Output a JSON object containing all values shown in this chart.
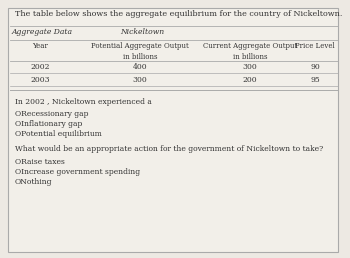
{
  "title": "The table below shows the aggregate equilibrium for the country of Nickeltown.",
  "table_header1": "Aggregate Data",
  "table_header2": "Nickeltown",
  "col_year": "Year",
  "col_potential": "Potential Aggregate Output",
  "col_current": "Current Aggregate Output",
  "col_price": "Price Level",
  "sub_billions1": "in billions",
  "sub_billions2": "in billions",
  "rows": [
    [
      "2002",
      "400",
      "300",
      "90"
    ],
    [
      "2003",
      "300",
      "200",
      "95"
    ]
  ],
  "question1": "In 2002 , Nickeltown experienced a",
  "options1": [
    "ORecessionary gap",
    "OInflationary gap",
    "OPotential equilibrium"
  ],
  "question2": "What would be an appropriate action for the government of Nickeltown to take?",
  "options2": [
    "ORaise taxes",
    "OIncrease government spending",
    "ONothing"
  ],
  "bg_color": "#ede9e3",
  "inner_bg": "#f2efe9",
  "border_color": "#aaaaaa",
  "text_color": "#333333",
  "line_color": "#aaaaaa",
  "fs_title": 5.8,
  "fs_header": 5.5,
  "fs_data": 5.5,
  "fs_text": 5.5
}
